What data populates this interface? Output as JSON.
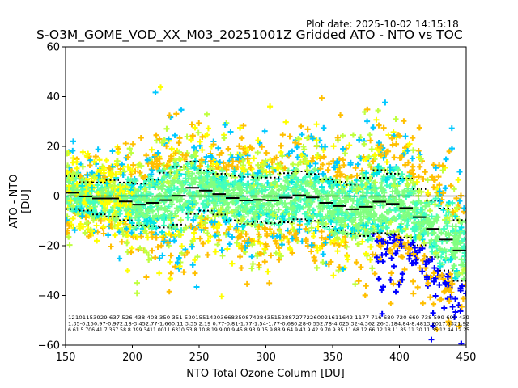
{
  "chart_data": {
    "type": "scatter",
    "title": "S-O3M_GOME_VOD_XX_M03_20251001Z Gridded ATO - NTO vs TOC",
    "plot_date": "Plot date: 2025-10-02 14:15:18",
    "xlabel": "NTO Total Ozone Column [DU]",
    "ylabel": "ATO - NTO [DU]",
    "xlim": [
      150,
      450
    ],
    "ylim": [
      -60,
      60
    ],
    "xticks": [
      "150",
      "200",
      "250",
      "300",
      "350",
      "400",
      "450"
    ],
    "yticks": [
      "60",
      "40",
      "20",
      "0",
      "−20",
      "−40",
      "−60"
    ],
    "bin_edges_start": 150,
    "bin_width": 10,
    "bin_means": [
      1.35,
      -0.15,
      -0.97,
      -0.97,
      -2.18,
      -3.45,
      -2.77,
      -1.66,
      0.11,
      3.35,
      2.19,
      0.77,
      -0.81,
      -1.77,
      -1.54,
      -1.77,
      -0.68,
      0.28,
      -0.55,
      -2.78,
      -4.02,
      -5.32,
      -4.36,
      -2.26,
      -3.18,
      -4.84,
      -8.48,
      -13.2,
      -17.5,
      -21.92
    ],
    "bin_stddev": [
      6.61,
      5.7,
      6.41,
      7.36,
      7.58,
      8.39,
      9.34,
      11.0,
      11.63,
      10.53,
      8.1,
      8.19,
      9.0,
      9.45,
      8.93,
      9.15,
      9.88,
      9.64,
      9.43,
      9.42,
      9.7,
      9.85,
      11.68,
      12.66,
      12.18,
      11.85,
      11.3,
      11.35,
      12.44,
      12.25
    ],
    "stats_lines": [
      "12101153929  637  526  438  408  350  351  52015514203668350874284351528872772260021611642 1177  716  680  720  669  738  599  690  439",
      "1.35-0.150.97-0.972.18-3.452.77-1.660.11 3.35 2.19 0.77-0.81-1.77-1.54-1.77-0.680.28-0.552.78-4.025.32-4.362.26-3.184.84-8.4813.2017.5321.92",
      "6.61 5.706.41 7.367.58 8.399.3411.0011.6310.53 8.10 8.19 9.00 9.45 8.93 9.15 9.88 9.64 9.43 9.42 9.70 9.85 11.68 12.66 12.18 11.85 11.30 11.35 12.44 12.25"
    ],
    "series_colors": [
      "#0000ff",
      "#00c8ff",
      "#00e5e5",
      "#40ffbf",
      "#80ff80",
      "#c0ff40",
      "#ffff00",
      "#ffbf00"
    ],
    "mean_line_color": "#000000",
    "zero_line_color": "#000000",
    "marker": "plus",
    "grid": false
  }
}
